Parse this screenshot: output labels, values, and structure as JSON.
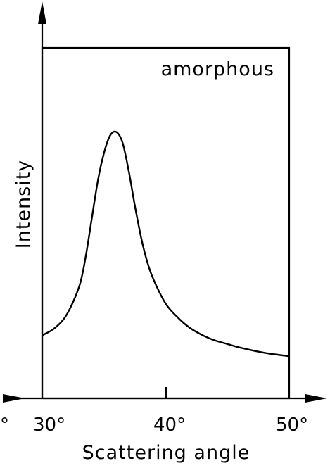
{
  "chart_data": {
    "type": "line",
    "title": "",
    "annotation": "amorphous",
    "xlabel": "Scattering angle",
    "ylabel": "Intensity",
    "xlim": [
      30,
      50
    ],
    "ylim": [
      0,
      1
    ],
    "x_ticks": [
      {
        "value": 30,
        "label": "30°"
      },
      {
        "value": 40,
        "label": "40°"
      },
      {
        "value": 50,
        "label": "50°"
      }
    ],
    "left_partial_label": "°",
    "y_ticks": [],
    "grid": false,
    "legend": "none",
    "series": [
      {
        "x": [
          30,
          31,
          32,
          33,
          33.5,
          34,
          34.5,
          35,
          35.5,
          36,
          36.5,
          37,
          37.5,
          38,
          38.5,
          39,
          40,
          41,
          42,
          43,
          44,
          45,
          46,
          48,
          50
        ],
        "y": [
          0.18,
          0.2,
          0.24,
          0.32,
          0.4,
          0.51,
          0.62,
          0.7,
          0.75,
          0.76,
          0.73,
          0.65,
          0.55,
          0.46,
          0.39,
          0.34,
          0.27,
          0.23,
          0.2,
          0.18,
          0.165,
          0.155,
          0.145,
          0.13,
          0.12
        ]
      }
    ]
  }
}
